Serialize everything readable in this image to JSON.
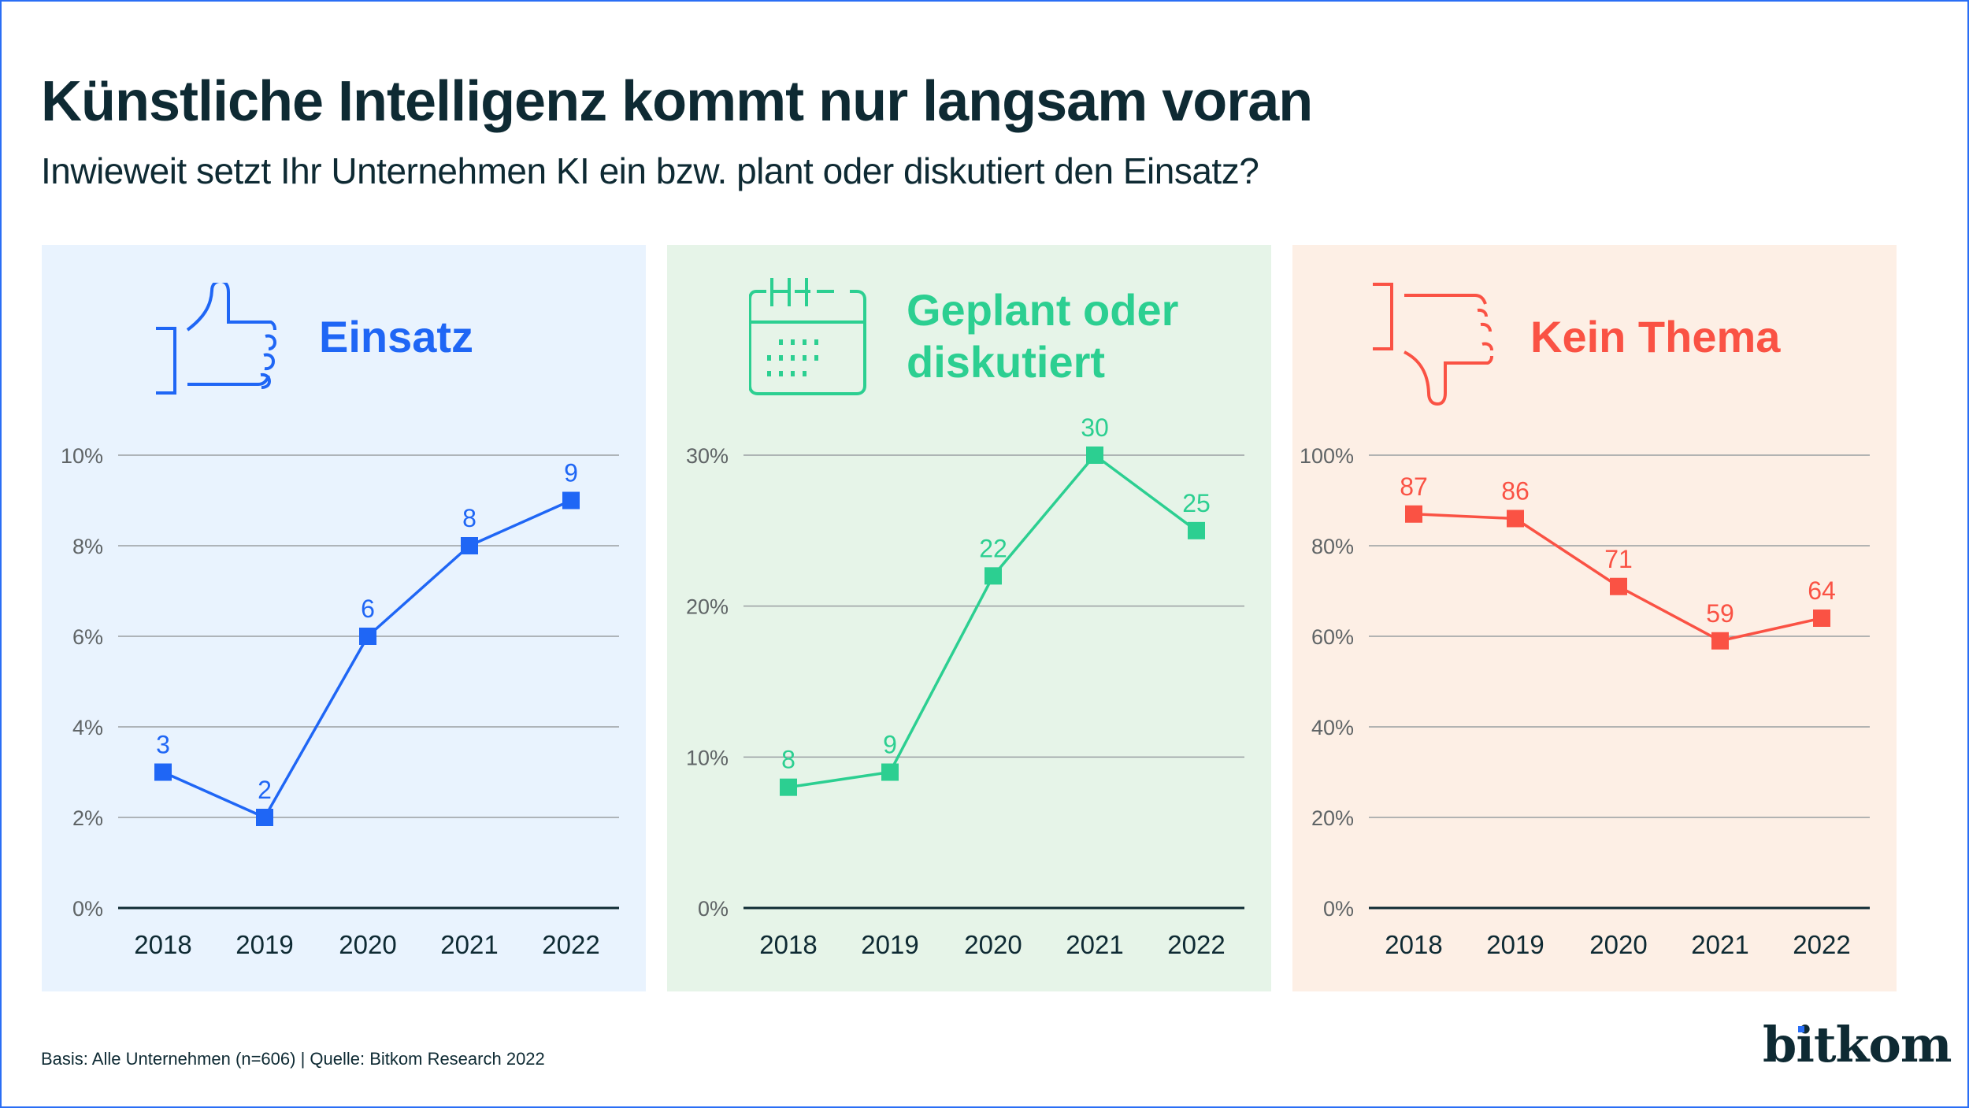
{
  "header": {
    "title": "Künstliche Intelligenz kommt nur langsam voran",
    "subtitle": "Inwieweit setzt Ihr Unternehmen KI ein bzw. plant oder diskutiert den Einsatz?"
  },
  "footer": {
    "note": "Basis: Alle Unternehmen (n=606) | Quelle: Bitkom Research 2022",
    "logo": "bitkom"
  },
  "colors": {
    "text": "#0e2a33",
    "tick": "#5f6466",
    "grid": "#9a9fa2",
    "frame": "#2a6ef5"
  },
  "chart_data": [
    {
      "type": "line",
      "title": "Einsatz",
      "icon": "thumbs-up-icon",
      "color": "#1f66f5",
      "background": "#e9f3fe",
      "x": [
        "2018",
        "2019",
        "2020",
        "2021",
        "2022"
      ],
      "values": [
        3,
        2,
        6,
        8,
        9
      ],
      "value_labels": [
        "3",
        "2",
        "6",
        "8",
        "9"
      ],
      "ylim": [
        0,
        10
      ],
      "yticks": [
        0,
        2,
        4,
        6,
        8,
        10
      ],
      "ytick_labels": [
        "0%",
        "2%",
        "4%",
        "6%",
        "8%",
        "10%"
      ],
      "grid": true,
      "xlabel": "",
      "ylabel": ""
    },
    {
      "type": "line",
      "title": "Geplant oder diskutiert",
      "title_lines": [
        "Geplant oder",
        "diskutiert"
      ],
      "icon": "calendar-icon",
      "color": "#2ccf91",
      "background": "#e6f4e8",
      "x": [
        "2018",
        "2019",
        "2020",
        "2021",
        "2022"
      ],
      "values": [
        8,
        9,
        22,
        30,
        25
      ],
      "value_labels": [
        "8",
        "9",
        "22",
        "30",
        "25"
      ],
      "ylim": [
        0,
        30
      ],
      "yticks": [
        0,
        10,
        20,
        30
      ],
      "ytick_labels": [
        "0%",
        "10%",
        "20%",
        "30%"
      ],
      "grid": true,
      "xlabel": "",
      "ylabel": ""
    },
    {
      "type": "line",
      "title": "Kein Thema",
      "icon": "thumbs-down-icon",
      "color": "#fa5244",
      "background": "#fdefe5",
      "x": [
        "2018",
        "2019",
        "2020",
        "2021",
        "2022"
      ],
      "values": [
        87,
        86,
        71,
        59,
        64
      ],
      "value_labels": [
        "87",
        "86",
        "71",
        "59",
        "64"
      ],
      "ylim": [
        0,
        100
      ],
      "yticks": [
        0,
        20,
        40,
        60,
        80,
        100
      ],
      "ytick_labels": [
        "0%",
        "20%",
        "40%",
        "60%",
        "80%",
        "100%"
      ],
      "grid": true,
      "xlabel": "",
      "ylabel": ""
    }
  ]
}
